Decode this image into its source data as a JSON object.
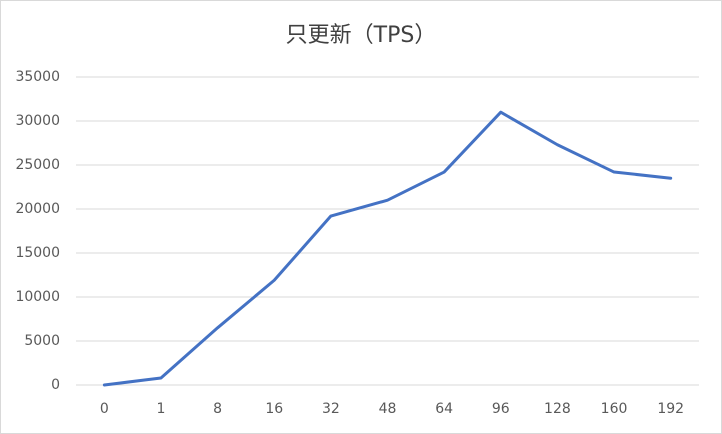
{
  "chart_data": {
    "type": "line",
    "title": "只更新（TPS）",
    "categories": [
      "0",
      "1",
      "8",
      "16",
      "32",
      "48",
      "64",
      "96",
      "128",
      "160",
      "192"
    ],
    "series": [
      {
        "name": "TPS",
        "color": "#4472c4",
        "values": [
          0,
          800,
          6500,
          11900,
          19200,
          21000,
          24200,
          31000,
          27300,
          24200,
          23500
        ]
      }
    ],
    "ylim": [
      0,
      35000
    ],
    "yticks": [
      0,
      5000,
      10000,
      15000,
      20000,
      25000,
      30000,
      35000
    ],
    "grid": true
  }
}
